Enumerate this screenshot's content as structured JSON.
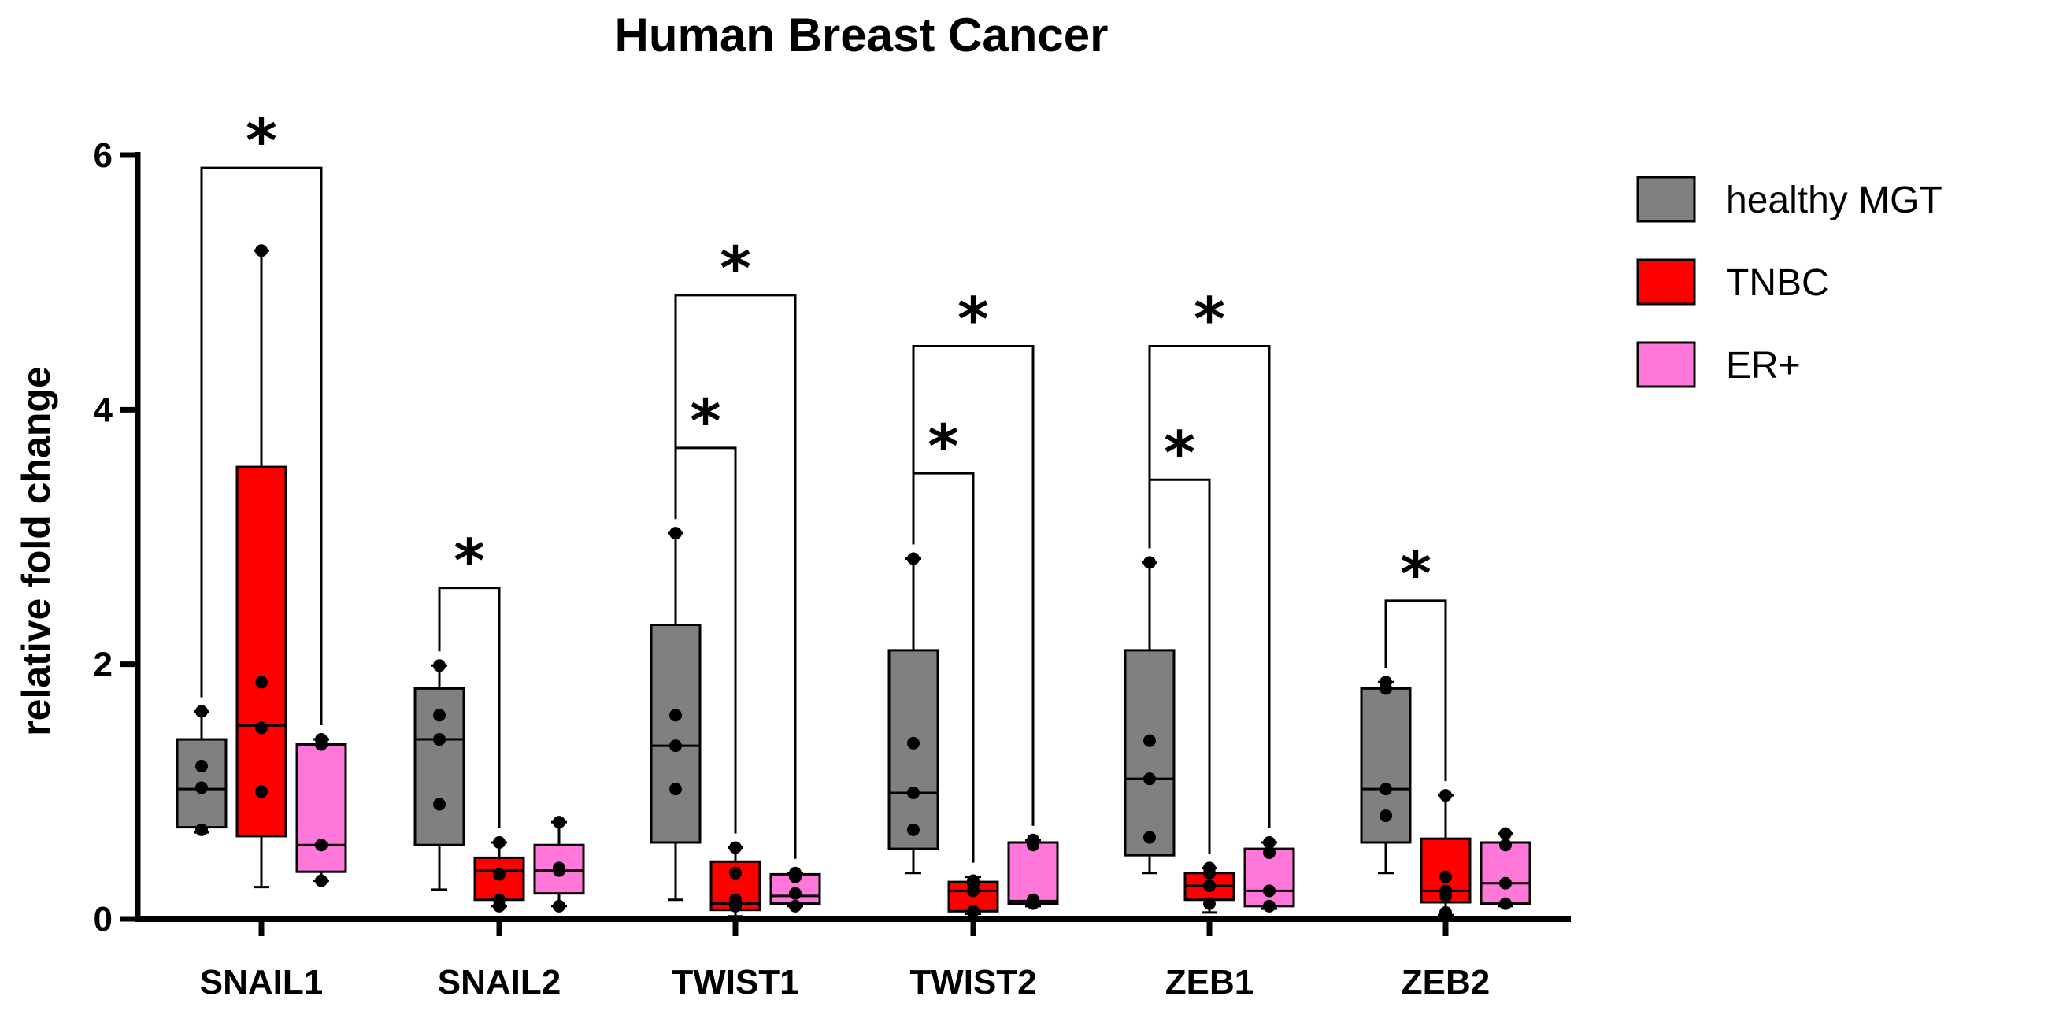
{
  "chart_data": {
    "type": "box",
    "title": "Human Breast Cancer",
    "xlabel": "",
    "ylabel": "relative fold change",
    "ylim": [
      0,
      6
    ],
    "yticks": [
      "0",
      "2",
      "4",
      "6"
    ],
    "categories": [
      "SNAIL1",
      "SNAIL2",
      "TWIST1",
      "TWIST2",
      "ZEB1",
      "ZEB2"
    ],
    "legend_position": "right",
    "series": [
      {
        "name": "healthy MGT",
        "color": "#808080",
        "boxes": [
          {
            "min": 0.68,
            "q1": 0.72,
            "median": 1.02,
            "q3": 1.41,
            "max": 1.63,
            "points": [
              0.7,
              1.03,
              1.2,
              1.63
            ]
          },
          {
            "min": 0.23,
            "q1": 0.58,
            "median": 1.41,
            "q3": 1.81,
            "max": 1.99,
            "points": [
              0.9,
              1.41,
              1.6,
              1.99
            ]
          },
          {
            "min": 0.15,
            "q1": 0.6,
            "median": 1.36,
            "q3": 2.31,
            "max": 3.03,
            "points": [
              1.02,
              1.36,
              1.6,
              3.03
            ]
          },
          {
            "min": 0.36,
            "q1": 0.55,
            "median": 0.99,
            "q3": 2.11,
            "max": 2.83,
            "points": [
              0.7,
              0.99,
              1.38,
              2.83
            ]
          },
          {
            "min": 0.36,
            "q1": 0.5,
            "median": 1.1,
            "q3": 2.11,
            "max": 2.8,
            "points": [
              0.64,
              1.1,
              1.4,
              2.8
            ]
          },
          {
            "min": 0.36,
            "q1": 0.6,
            "median": 1.02,
            "q3": 1.81,
            "max": 1.86,
            "points": [
              0.81,
              1.02,
              1.81,
              1.86
            ]
          }
        ]
      },
      {
        "name": "TNBC",
        "color": "#ff0000",
        "boxes": [
          {
            "min": 0.25,
            "q1": 0.65,
            "median": 1.52,
            "q3": 3.55,
            "max": 5.25,
            "points": [
              1.0,
              1.5,
              1.86,
              5.25
            ]
          },
          {
            "min": 0.1,
            "q1": 0.15,
            "median": 0.38,
            "q3": 0.48,
            "max": 0.6,
            "points": [
              0.1,
              0.15,
              0.35,
              0.6
            ]
          },
          {
            "min": 0.02,
            "q1": 0.07,
            "median": 0.12,
            "q3": 0.45,
            "max": 0.56,
            "points": [
              0.1,
              0.15,
              0.36,
              0.56
            ]
          },
          {
            "min": 0.04,
            "q1": 0.06,
            "median": 0.22,
            "q3": 0.29,
            "max": 0.33,
            "points": [
              0.06,
              0.22,
              0.27,
              0.3
            ]
          },
          {
            "min": 0.05,
            "q1": 0.15,
            "median": 0.26,
            "q3": 0.36,
            "max": 0.4,
            "points": [
              0.12,
              0.26,
              0.36,
              0.4
            ]
          },
          {
            "min": 0.03,
            "q1": 0.13,
            "median": 0.22,
            "q3": 0.63,
            "max": 0.97,
            "points": [
              0.05,
              0.18,
              0.22,
              0.33,
              0.97
            ]
          }
        ]
      },
      {
        "name": "ER+",
        "color": "#ff77d8",
        "boxes": [
          {
            "min": 0.3,
            "q1": 0.37,
            "median": 0.58,
            "q3": 1.37,
            "max": 1.41,
            "points": [
              0.3,
              0.58,
              1.37,
              1.41
            ]
          },
          {
            "min": 0.1,
            "q1": 0.2,
            "median": 0.38,
            "q3": 0.58,
            "max": 0.76,
            "points": [
              0.1,
              0.38,
              0.4,
              0.76
            ]
          },
          {
            "min": 0.1,
            "q1": 0.12,
            "median": 0.18,
            "q3": 0.35,
            "max": 0.36,
            "points": [
              0.1,
              0.2,
              0.33,
              0.36
            ]
          },
          {
            "min": 0.1,
            "q1": 0.12,
            "median": 0.14,
            "q3": 0.6,
            "max": 0.62,
            "points": [
              0.12,
              0.15,
              0.58,
              0.62
            ]
          },
          {
            "min": 0.08,
            "q1": 0.1,
            "median": 0.22,
            "q3": 0.55,
            "max": 0.6,
            "points": [
              0.1,
              0.22,
              0.52,
              0.6
            ]
          },
          {
            "min": 0.1,
            "q1": 0.12,
            "median": 0.28,
            "q3": 0.6,
            "max": 0.67,
            "points": [
              0.12,
              0.28,
              0.58,
              0.67
            ]
          }
        ]
      }
    ],
    "significance": [
      {
        "group": "SNAIL1",
        "from": "healthy MGT",
        "to": "ER+",
        "label": "*"
      },
      {
        "group": "SNAIL2",
        "from": "healthy MGT",
        "to": "TNBC",
        "label": "*"
      },
      {
        "group": "TWIST1",
        "from": "healthy MGT",
        "to": "TNBC",
        "label": "*"
      },
      {
        "group": "TWIST1",
        "from": "healthy MGT",
        "to": "ER+",
        "label": "*"
      },
      {
        "group": "TWIST2",
        "from": "healthy MGT",
        "to": "TNBC",
        "label": "*"
      },
      {
        "group": "TWIST2",
        "from": "healthy MGT",
        "to": "ER+",
        "label": "*"
      },
      {
        "group": "ZEB1",
        "from": "healthy MGT",
        "to": "TNBC",
        "label": "*"
      },
      {
        "group": "ZEB1",
        "from": "healthy MGT",
        "to": "ER+",
        "label": "*"
      },
      {
        "group": "ZEB2",
        "from": "healthy MGT",
        "to": "TNBC",
        "label": "*"
      }
    ]
  }
}
